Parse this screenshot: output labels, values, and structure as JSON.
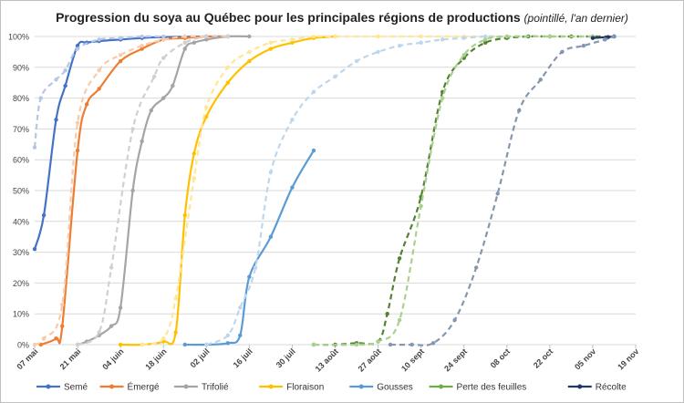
{
  "chart_data": {
    "type": "line",
    "title": "Progression du soya au Québec pour les principales régions de productions",
    "subtitle": "(pointillé, l'an dernier)",
    "xlabel": "",
    "ylabel": "",
    "ylim": [
      0,
      100
    ],
    "xlim": [
      "2024-05-07",
      "2024-11-19"
    ],
    "x_ticks": [
      "07 mai",
      "21 mai",
      "04 juin",
      "18 juin",
      "02 juil",
      "16 juil",
      "30 juil",
      "13 août",
      "27 août",
      "10 sept",
      "24 sept",
      "08 oct",
      "22 oct",
      "05 nov",
      "19 nov"
    ],
    "y_ticks": [
      "0%",
      "10%",
      "20%",
      "30%",
      "40%",
      "50%",
      "60%",
      "70%",
      "80%",
      "90%",
      "100%"
    ],
    "grid": true,
    "legend_position": "bottom",
    "series": [
      {
        "name": "Semé",
        "color": "#4472C4",
        "style": "solid",
        "points": [
          [
            "2024-05-07",
            31
          ],
          [
            "2024-05-10",
            42
          ],
          [
            "2024-05-14",
            73
          ],
          [
            "2024-05-17",
            84
          ],
          [
            "2024-05-21",
            97
          ],
          [
            "2024-05-24",
            98
          ],
          [
            "2024-05-28",
            98.5
          ],
          [
            "2024-06-04",
            99
          ],
          [
            "2024-06-11",
            99.5
          ],
          [
            "2024-06-18",
            99.8
          ],
          [
            "2024-06-25",
            99.9
          ],
          [
            "2024-07-02",
            100
          ]
        ]
      },
      {
        "name": "Semé",
        "color": "#B4C7E7",
        "style": "dashed",
        "points": [
          [
            "2024-05-07",
            64
          ],
          [
            "2024-05-09",
            80
          ],
          [
            "2024-05-14",
            86
          ],
          [
            "2024-05-17",
            89
          ],
          [
            "2024-05-21",
            96
          ],
          [
            "2024-05-28",
            99
          ],
          [
            "2024-06-04",
            99.5
          ],
          [
            "2024-06-11",
            100
          ],
          [
            "2024-06-18",
            100
          ]
        ]
      },
      {
        "name": "Émergé",
        "color": "#ED7D31",
        "style": "solid",
        "points": [
          [
            "2024-05-09",
            0
          ],
          [
            "2024-05-14",
            2
          ],
          [
            "2024-05-16",
            6
          ],
          [
            "2024-05-21",
            63
          ],
          [
            "2024-05-24",
            78
          ],
          [
            "2024-05-28",
            83
          ],
          [
            "2024-06-04",
            92
          ],
          [
            "2024-06-11",
            96
          ],
          [
            "2024-06-18",
            99
          ],
          [
            "2024-06-25",
            99.5
          ],
          [
            "2024-07-02",
            100
          ],
          [
            "2024-07-09",
            100
          ]
        ]
      },
      {
        "name": "Émergé",
        "color": "#F8CBAD",
        "style": "dashed",
        "points": [
          [
            "2024-05-07",
            0
          ],
          [
            "2024-05-10",
            2
          ],
          [
            "2024-05-16",
            13
          ],
          [
            "2024-05-21",
            72
          ],
          [
            "2024-05-28",
            89
          ],
          [
            "2024-06-04",
            94
          ],
          [
            "2024-06-11",
            97
          ],
          [
            "2024-06-18",
            99
          ],
          [
            "2024-06-25",
            100
          ],
          [
            "2024-07-02",
            100
          ]
        ]
      },
      {
        "name": "Trifolié",
        "color": "#A5A5A5",
        "style": "solid",
        "points": [
          [
            "2024-05-21",
            0
          ],
          [
            "2024-05-24",
            1
          ],
          [
            "2024-05-28",
            3
          ],
          [
            "2024-06-01",
            6
          ],
          [
            "2024-06-04",
            12
          ],
          [
            "2024-06-08",
            50
          ],
          [
            "2024-06-11",
            66
          ],
          [
            "2024-06-14",
            76
          ],
          [
            "2024-06-18",
            80
          ],
          [
            "2024-06-21",
            84
          ],
          [
            "2024-06-25",
            96
          ],
          [
            "2024-06-28",
            98
          ],
          [
            "2024-07-02",
            99
          ],
          [
            "2024-07-09",
            100
          ],
          [
            "2024-07-16",
            100
          ]
        ]
      },
      {
        "name": "Trifolié",
        "color": "#D0D0D0",
        "style": "dashed",
        "points": [
          [
            "2024-05-21",
            0
          ],
          [
            "2024-05-28",
            4
          ],
          [
            "2024-06-01",
            25
          ],
          [
            "2024-06-08",
            70
          ],
          [
            "2024-06-15",
            87
          ],
          [
            "2024-06-18",
            93
          ],
          [
            "2024-06-25",
            98
          ],
          [
            "2024-07-02",
            100
          ],
          [
            "2024-07-09",
            100
          ]
        ]
      },
      {
        "name": "Floraison",
        "color": "#FFC000",
        "style": "solid",
        "points": [
          [
            "2024-06-04",
            0
          ],
          [
            "2024-06-11",
            0
          ],
          [
            "2024-06-18",
            1
          ],
          [
            "2024-06-22",
            4
          ],
          [
            "2024-06-25",
            42
          ],
          [
            "2024-06-28",
            62
          ],
          [
            "2024-07-02",
            74
          ],
          [
            "2024-07-09",
            85
          ],
          [
            "2024-07-16",
            92
          ],
          [
            "2024-07-23",
            96
          ],
          [
            "2024-07-30",
            98
          ],
          [
            "2024-08-06",
            99.5
          ],
          [
            "2024-08-13",
            100
          ]
        ]
      },
      {
        "name": "Floraison",
        "color": "#FFE699",
        "style": "dashed",
        "points": [
          [
            "2024-06-11",
            0
          ],
          [
            "2024-06-18",
            2
          ],
          [
            "2024-06-22",
            15
          ],
          [
            "2024-06-28",
            54
          ],
          [
            "2024-07-02",
            77
          ],
          [
            "2024-07-09",
            90
          ],
          [
            "2024-07-16",
            95
          ],
          [
            "2024-07-23",
            98
          ],
          [
            "2024-07-30",
            99
          ],
          [
            "2024-08-06",
            100
          ],
          [
            "2024-08-13",
            100
          ],
          [
            "2024-08-27",
            100
          ],
          [
            "2024-09-10",
            100
          ],
          [
            "2024-09-24",
            100
          ],
          [
            "2024-10-08",
            100
          ]
        ]
      },
      {
        "name": "Gousses",
        "color": "#5B9BD5",
        "style": "solid",
        "points": [
          [
            "2024-06-25",
            0
          ],
          [
            "2024-07-02",
            0
          ],
          [
            "2024-07-09",
            0.5
          ],
          [
            "2024-07-13",
            3
          ],
          [
            "2024-07-16",
            22
          ],
          [
            "2024-07-23",
            35
          ],
          [
            "2024-07-30",
            51
          ],
          [
            "2024-08-06",
            63
          ]
        ]
      },
      {
        "name": "Gousses",
        "color": "#BDD7EE",
        "style": "dashed",
        "points": [
          [
            "2024-07-02",
            0
          ],
          [
            "2024-07-09",
            3
          ],
          [
            "2024-07-13",
            12
          ],
          [
            "2024-07-18",
            25
          ],
          [
            "2024-07-23",
            56
          ],
          [
            "2024-07-30",
            73
          ],
          [
            "2024-08-06",
            82
          ],
          [
            "2024-08-13",
            87
          ],
          [
            "2024-08-20",
            92
          ],
          [
            "2024-08-27",
            95
          ],
          [
            "2024-09-03",
            97
          ],
          [
            "2024-09-10",
            98
          ],
          [
            "2024-09-17",
            99
          ],
          [
            "2024-09-24",
            99.5
          ],
          [
            "2024-10-01",
            100
          ],
          [
            "2024-10-08",
            100
          ]
        ]
      },
      {
        "name": "Perte des feuilles",
        "color": "#548235",
        "style": "dashed",
        "points": [
          [
            "2024-08-06",
            0
          ],
          [
            "2024-08-13",
            0
          ],
          [
            "2024-08-20",
            0.5
          ],
          [
            "2024-08-27",
            1
          ],
          [
            "2024-08-30",
            10
          ],
          [
            "2024-09-03",
            28
          ],
          [
            "2024-09-10",
            48
          ],
          [
            "2024-09-17",
            82
          ],
          [
            "2024-09-24",
            93
          ],
          [
            "2024-10-01",
            98
          ],
          [
            "2024-10-08",
            99.5
          ],
          [
            "2024-10-15",
            100
          ],
          [
            "2024-10-22",
            100
          ],
          [
            "2024-10-29",
            100
          ],
          [
            "2024-11-05",
            100
          ],
          [
            "2024-11-12",
            100
          ]
        ]
      },
      {
        "name": "Perte des feuilles",
        "color": "#A9D18E",
        "style": "dashed",
        "points": [
          [
            "2024-08-06",
            0
          ],
          [
            "2024-08-20",
            0
          ],
          [
            "2024-08-27",
            1
          ],
          [
            "2024-09-03",
            8
          ],
          [
            "2024-09-10",
            45
          ],
          [
            "2024-09-17",
            80
          ],
          [
            "2024-09-24",
            94
          ],
          [
            "2024-10-01",
            99
          ],
          [
            "2024-10-08",
            100
          ],
          [
            "2024-10-22",
            100
          ],
          [
            "2024-11-05",
            100
          ]
        ]
      },
      {
        "name": "Récolte",
        "color": "#203864",
        "style": "solid",
        "points": [
          [
            "2024-11-05",
            99.5
          ],
          [
            "2024-11-10",
            99.8
          ],
          [
            "2024-11-12",
            100
          ]
        ]
      },
      {
        "name": "Récolte",
        "color": "#8497B0",
        "style": "dashed",
        "points": [
          [
            "2024-08-31",
            0
          ],
          [
            "2024-09-07",
            0
          ],
          [
            "2024-09-14",
            0.5
          ],
          [
            "2024-09-21",
            8
          ],
          [
            "2024-09-28",
            25
          ],
          [
            "2024-10-05",
            49
          ],
          [
            "2024-10-12",
            76
          ],
          [
            "2024-10-19",
            86
          ],
          [
            "2024-10-26",
            95
          ],
          [
            "2024-11-02",
            97
          ],
          [
            "2024-11-09",
            99
          ],
          [
            "2024-11-12",
            100
          ]
        ]
      }
    ],
    "legend": [
      {
        "name": "Semé",
        "color": "#4472C4"
      },
      {
        "name": "Émergé",
        "color": "#ED7D31"
      },
      {
        "name": "Trifolié",
        "color": "#A5A5A5"
      },
      {
        "name": "Floraison",
        "color": "#FFC000"
      },
      {
        "name": "Gousses",
        "color": "#5B9BD5"
      },
      {
        "name": "Perte des feuilles",
        "color": "#70AD47"
      },
      {
        "name": "Récolte",
        "color": "#203864"
      }
    ]
  }
}
